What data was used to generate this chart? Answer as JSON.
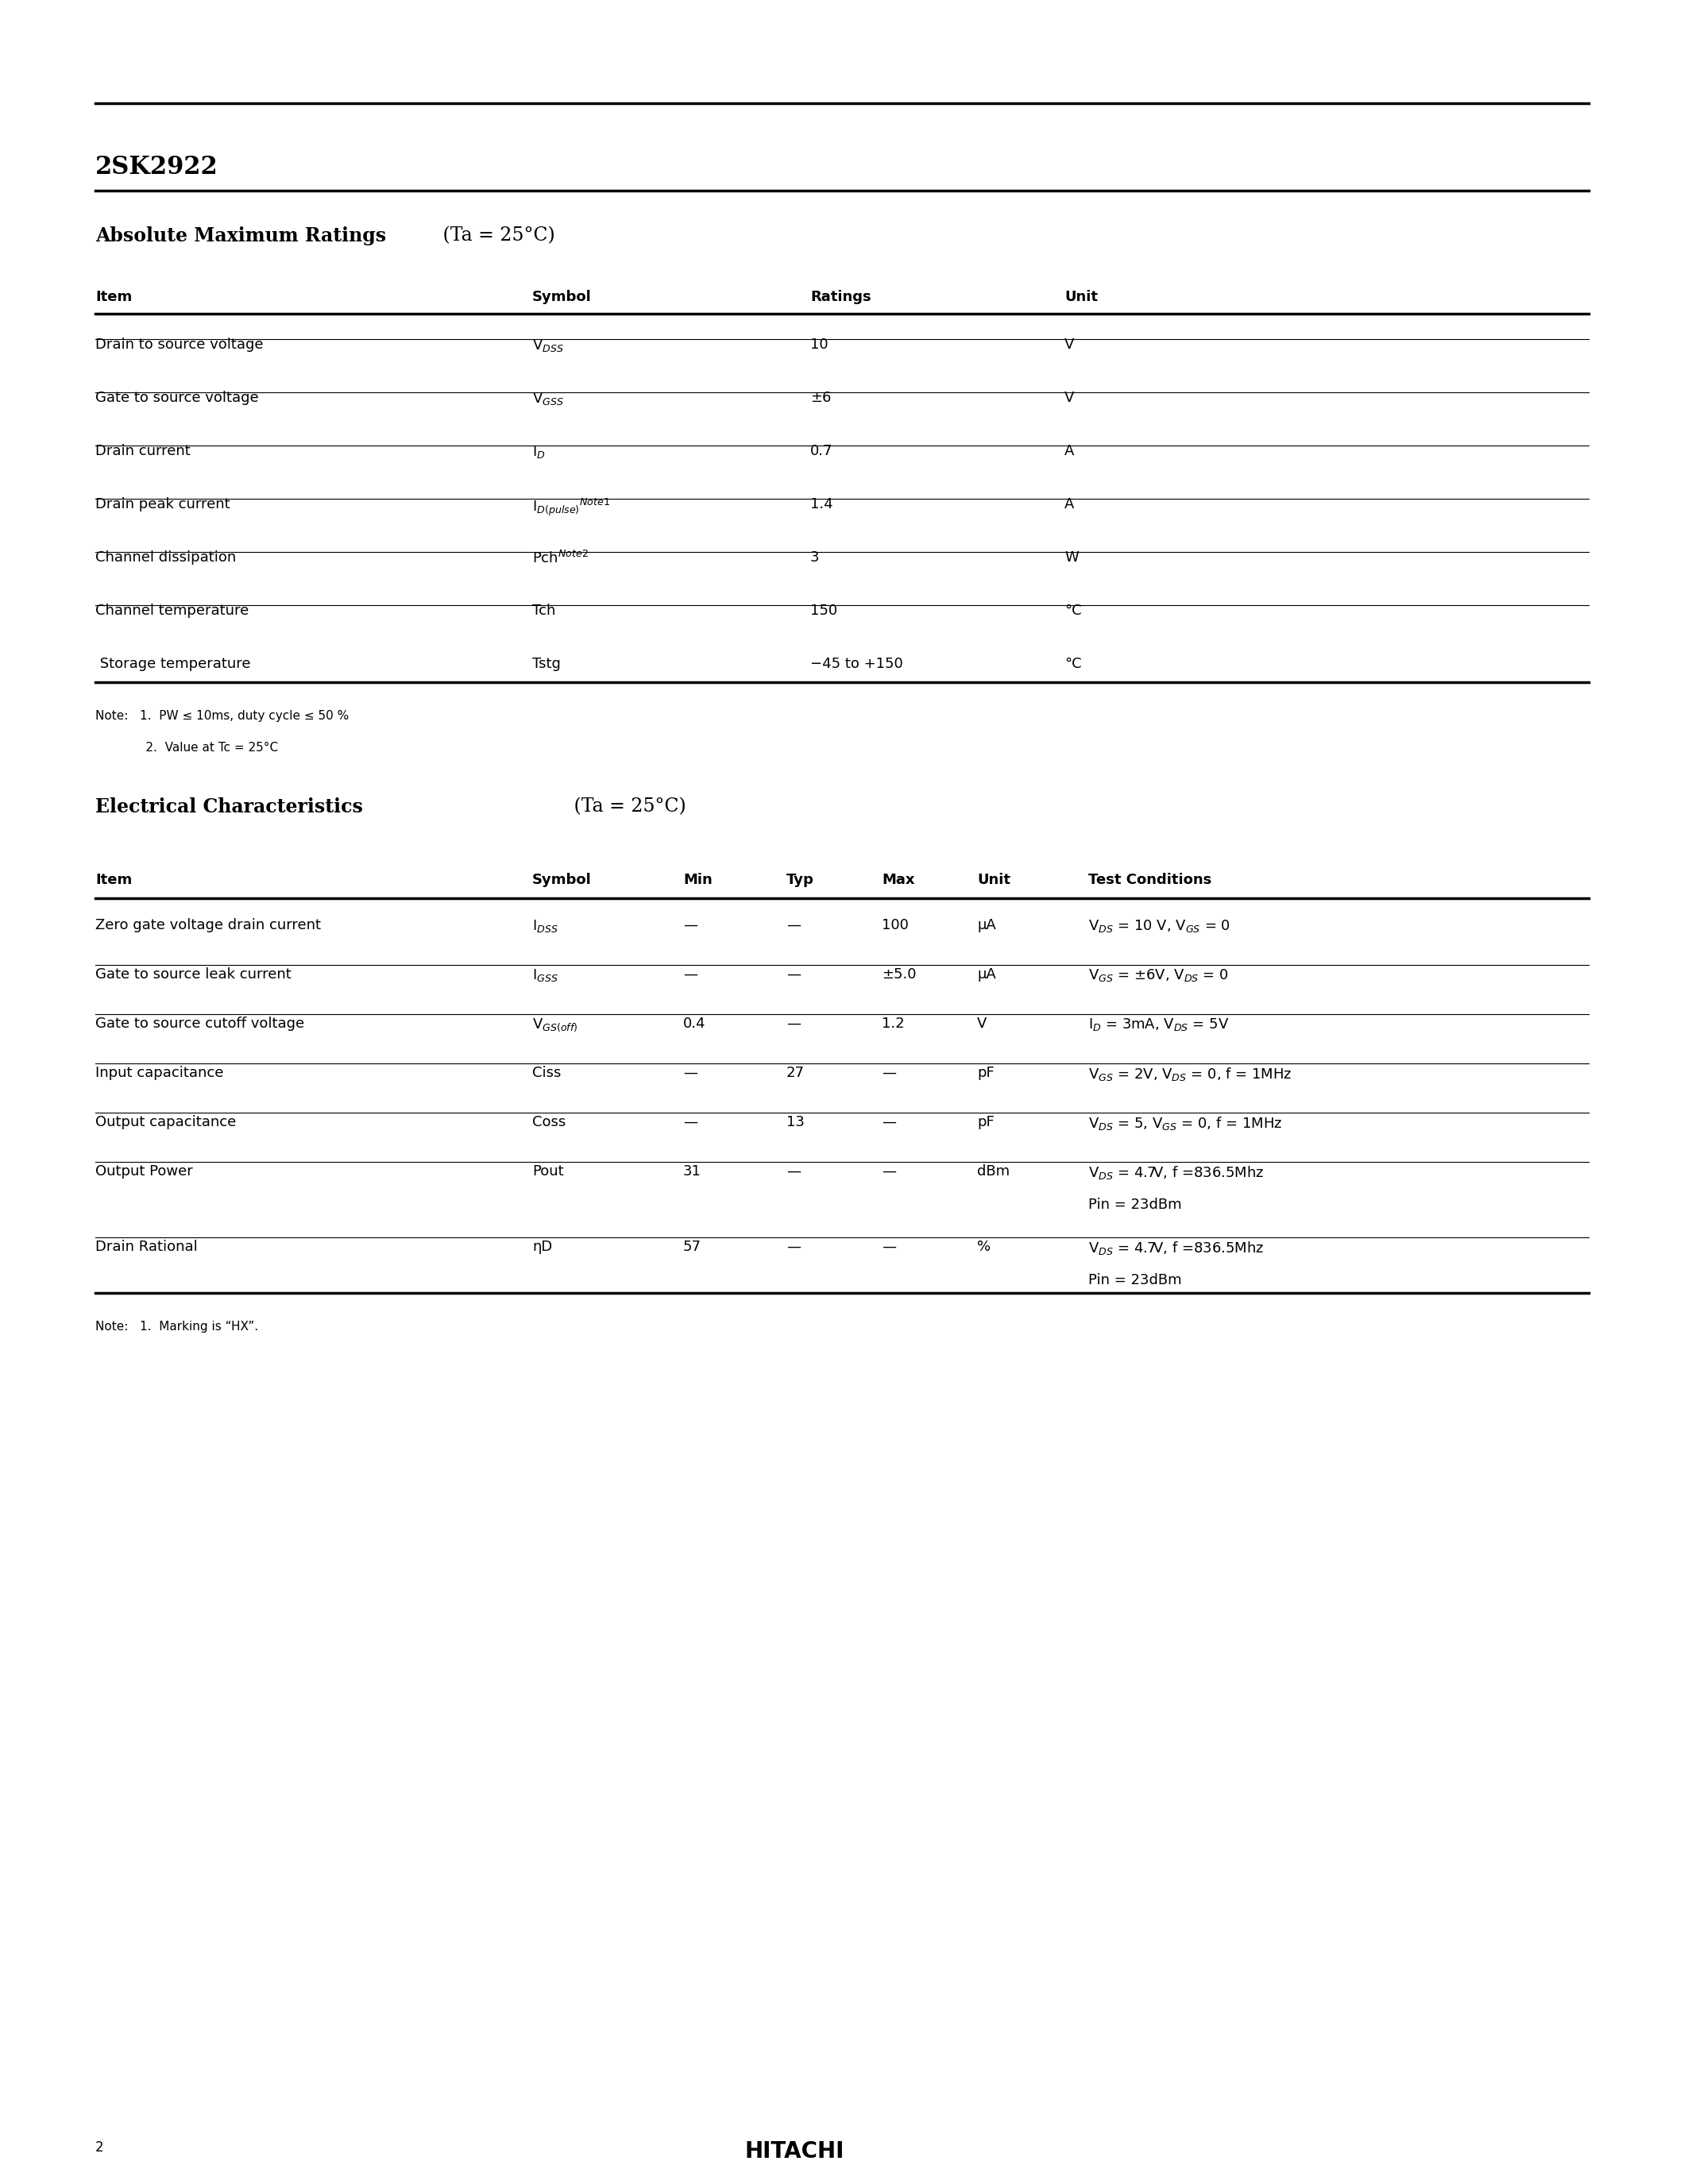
{
  "title": "2SK2922",
  "page_number": "2",
  "company": "HITACHI",
  "bg_color": "#ffffff",
  "text_color": "#000000",
  "abs_max_title": "Absolute Maximum Ratings",
  "abs_max_subtitle": " (Ta = 25°C)",
  "abs_max_headers": [
    "Item",
    "Symbol",
    "Ratings",
    "Unit"
  ],
  "abs_max_rows": [
    {
      "item": "Drain to source voltage",
      "symbol": "V$_{DSS}$",
      "ratings": "10",
      "unit": "V"
    },
    {
      "item": "Gate to source voltage",
      "symbol": "V$_{GSS}$",
      "ratings": "±6",
      "unit": "V"
    },
    {
      "item": "Drain current",
      "symbol": "I$_{D}$",
      "ratings": "0.7",
      "unit": "A"
    },
    {
      "item": "Drain peak current",
      "symbol": "I$_{D(pulse)}$$^{Note1}$",
      "ratings": "1.4",
      "unit": "A"
    },
    {
      "item": "Channel dissipation",
      "symbol": "Pch$^{Note2}$",
      "ratings": "3",
      "unit": "W"
    },
    {
      "item": "Channel temperature",
      "symbol": "Tch",
      "ratings": "150",
      "unit": "°C"
    },
    {
      "item": " Storage temperature",
      "symbol": "Tstg",
      "ratings": "−45 to +150",
      "unit": "°C"
    }
  ],
  "abs_max_notes": [
    "Note:   1.  PW ≤ 10ms, duty cycle ≤ 50 %",
    "             2.  Value at Tc = 25°C"
  ],
  "elec_char_title": "Electrical Characteristics",
  "elec_char_subtitle": " (Ta = 25°C)",
  "elec_char_headers": [
    "Item",
    "Symbol",
    "Min",
    "Typ",
    "Max",
    "Unit",
    "Test Conditions"
  ],
  "elec_char_rows": [
    {
      "item": "Zero gate voltage drain current",
      "symbol": "I$_{DSS}$",
      "min": "—",
      "typ": "—",
      "max": "100",
      "unit": "μA",
      "conditions": "V$_{DS}$ = 10 V, V$_{GS}$ = 0"
    },
    {
      "item": "Gate to source leak current",
      "symbol": "I$_{GSS}$",
      "min": "—",
      "typ": "—",
      "max": "±5.0",
      "unit": "μA",
      "conditions": "V$_{GS}$ = ±6V, V$_{DS}$ = 0"
    },
    {
      "item": "Gate to source cutoff voltage",
      "symbol": "V$_{GS(off)}$",
      "min": "0.4",
      "typ": "—",
      "max": "1.2",
      "unit": "V",
      "conditions": "I$_{D}$ = 3mA, V$_{DS}$ = 5V"
    },
    {
      "item": "Input capacitance",
      "symbol": "Ciss",
      "min": "—",
      "typ": "27",
      "max": "—",
      "unit": "pF",
      "conditions": "V$_{GS}$ = 2V, V$_{DS}$ = 0, f = 1MHz"
    },
    {
      "item": "Output capacitance",
      "symbol": "Coss",
      "min": "—",
      "typ": "13",
      "max": "—",
      "unit": "pF",
      "conditions": "V$_{DS}$ = 5, V$_{GS}$ = 0, f = 1MHz"
    },
    {
      "item": "Output Power",
      "symbol": "Pout",
      "min": "31",
      "typ": "—",
      "max": "—",
      "unit": "dBm",
      "conditions": "V$_{DS}$ = 4.7V, f =836.5Mhz\nPin = 23dBm"
    },
    {
      "item": "Drain Rational",
      "symbol": "ηD",
      "min": "57",
      "typ": "—",
      "max": "—",
      "unit": "%",
      "conditions": "V$_{DS}$ = 4.7V, f =836.5Mhz\nPin = 23dBm"
    }
  ],
  "elec_char_notes": [
    "Note:   1.  Marking is “HX”."
  ]
}
